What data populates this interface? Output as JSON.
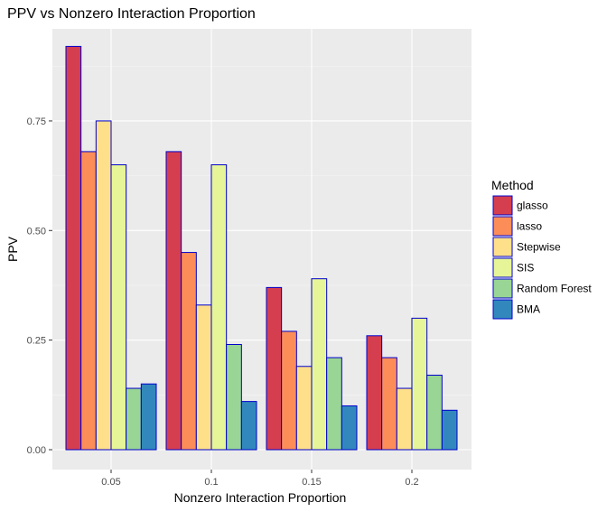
{
  "chart_data": {
    "type": "bar",
    "title": "PPV vs Nonzero Interaction Proportion",
    "xlabel": "Nonzero Interaction Proportion",
    "ylabel": "PPV",
    "categories": [
      "0.05",
      "0.1",
      "0.15",
      "0.2"
    ],
    "ylim": [
      0,
      0.96
    ],
    "yticks": [
      0.0,
      0.25,
      0.5,
      0.75
    ],
    "ytick_labels": [
      "0.00",
      "0.25",
      "0.50",
      "0.75"
    ],
    "grid": true,
    "legend": {
      "title": "Method",
      "position": "right"
    },
    "bar_outline_color": "#0000cc",
    "panel_color": "#ebebeb",
    "series": [
      {
        "name": "glasso",
        "color": "#d53e4f",
        "values": [
          0.92,
          0.68,
          0.37,
          0.26
        ]
      },
      {
        "name": "lasso",
        "color": "#fc8d59",
        "values": [
          0.68,
          0.45,
          0.27,
          0.21
        ]
      },
      {
        "name": "Stepwise",
        "color": "#fee08b",
        "values": [
          0.75,
          0.33,
          0.19,
          0.14
        ]
      },
      {
        "name": "SIS",
        "color": "#e6f598",
        "values": [
          0.65,
          0.65,
          0.39,
          0.3
        ]
      },
      {
        "name": "Random Forest",
        "color": "#99d594",
        "values": [
          0.14,
          0.24,
          0.21,
          0.17
        ]
      },
      {
        "name": "BMA",
        "color": "#3288bd",
        "values": [
          0.15,
          0.11,
          0.1,
          0.09
        ]
      }
    ]
  }
}
